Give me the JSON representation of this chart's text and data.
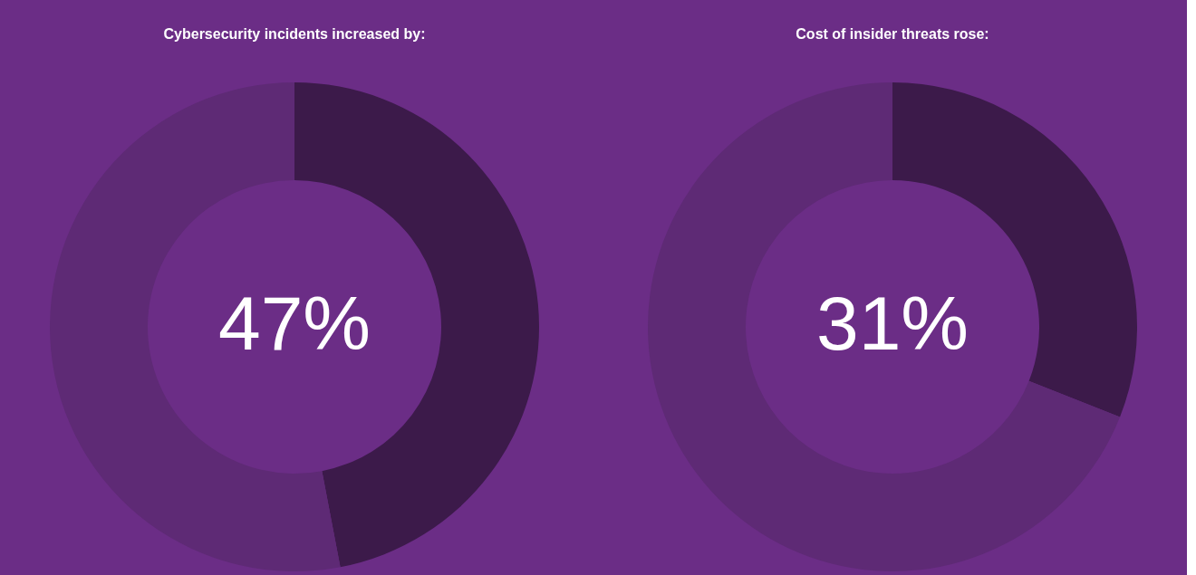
{
  "chart_data": [
    {
      "type": "donut",
      "title": "Cybersecurity incidents increased by:",
      "categories": [
        null,
        null
      ],
      "values": [
        47,
        53
      ],
      "colors": [
        "#3c1a4a",
        "#5e2a75"
      ],
      "value_labels": [
        "47%",
        null
      ]
    },
    {
      "type": "donut",
      "title": "Cost of insider threats rose:",
      "categories": [
        null,
        null
      ],
      "values": [
        31,
        69
      ],
      "colors": [
        "#3c1a4a",
        "#5e2a75"
      ],
      "value_labels": [
        "31%",
        null
      ]
    }
  ]
}
